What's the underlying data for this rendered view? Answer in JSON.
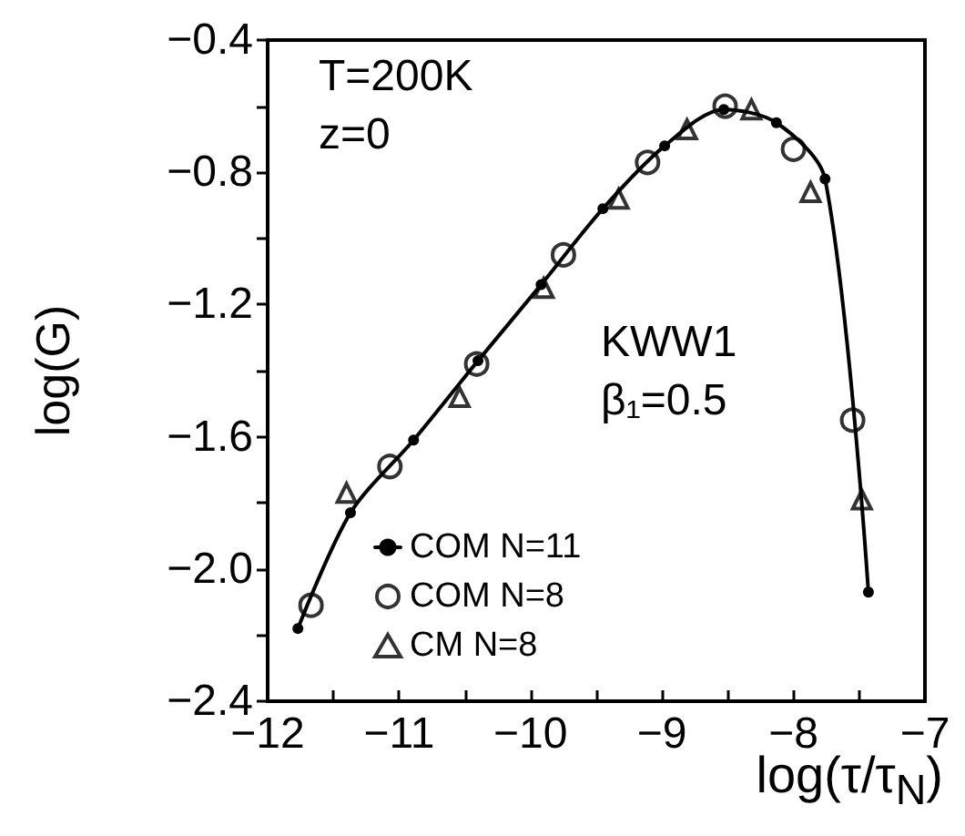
{
  "chart_data": {
    "type": "line",
    "xlabel": "log(τ/τ$_{N}$)",
    "ylabel": "log(G)",
    "annotations": [
      "T=200K",
      "z=0",
      "KWW1",
      "β₁=0.5"
    ],
    "xlim": [
      -12,
      -7
    ],
    "xticks": [
      {
        "value": -12,
        "label": "−12"
      },
      {
        "value": -11.5,
        "label": null
      },
      {
        "value": -11,
        "label": "−11"
      },
      {
        "value": -10.5,
        "label": null
      },
      {
        "value": -10,
        "label": "−10"
      },
      {
        "value": -9.5,
        "label": null
      },
      {
        "value": -9,
        "label": "−9"
      },
      {
        "value": -8.5,
        "label": null
      },
      {
        "value": -8,
        "label": "−8"
      },
      {
        "value": -7.5,
        "label": null
      },
      {
        "value": -7,
        "label": "−7"
      }
    ],
    "ylim": [
      -2.4,
      -0.4
    ],
    "yticks": [
      {
        "value": -2.4,
        "label": "−2.4"
      },
      {
        "value": -2.2,
        "label": null
      },
      {
        "value": -2.0,
        "label": "−2.0"
      },
      {
        "value": -1.8,
        "label": null
      },
      {
        "value": -1.6,
        "label": "−1.6"
      },
      {
        "value": -1.4,
        "label": null
      },
      {
        "value": -1.2,
        "label": "−1.2"
      },
      {
        "value": -1.0,
        "label": null
      },
      {
        "value": -0.8,
        "label": "−0.8"
      },
      {
        "value": -0.6,
        "label": null
      },
      {
        "value": -0.4,
        "label": "−0.4"
      }
    ],
    "grid": false,
    "legend": "bottom left",
    "series": [
      {
        "name": "COM N=11",
        "type": "line",
        "marker": "circle",
        "line_style": "solid",
        "color": "#000000",
        "x": [
          -11.77,
          -11.37,
          -10.89,
          -10.4,
          -9.92,
          -9.45,
          -8.98,
          -8.53,
          -8.13,
          -7.76,
          -7.43
        ],
        "values": [
          -2.18,
          -1.83,
          -1.61,
          -1.37,
          -1.14,
          -0.91,
          -0.72,
          -0.61,
          -0.65,
          -0.82,
          -2.07
        ]
      },
      {
        "name": "COM N=8",
        "type": "scatter",
        "marker": "circle",
        "color": "#000000",
        "x": [
          -11.67,
          -11.07,
          -10.41,
          -9.75,
          -9.11,
          -8.52,
          -8.0,
          -7.55
        ],
        "values": [
          -2.11,
          -1.69,
          -1.38,
          -1.05,
          -0.77,
          -0.6,
          -0.73,
          -1.55
        ]
      },
      {
        "name": "CM N=8",
        "type": "scatter",
        "marker": "triangle",
        "color": "#000000",
        "x": [
          -11.4,
          -10.54,
          -9.9,
          -9.33,
          -8.81,
          -8.32,
          -7.87,
          -7.48
        ],
        "values": [
          -1.77,
          -1.48,
          -1.15,
          -0.88,
          -0.67,
          -0.61,
          -0.86,
          -1.79
        ]
      }
    ]
  }
}
